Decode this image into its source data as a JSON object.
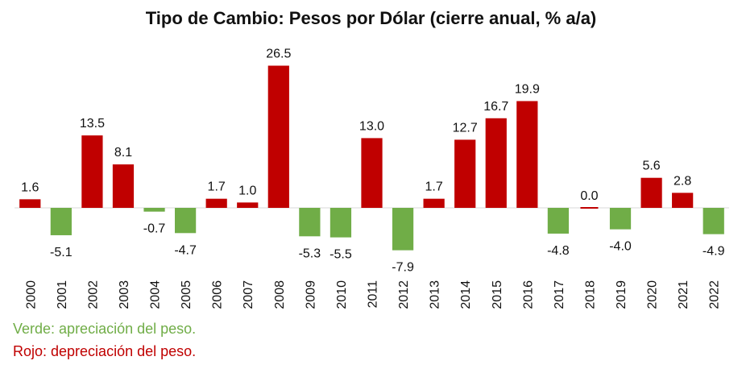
{
  "chart_data": {
    "type": "bar",
    "title": "Tipo de Cambio: Pesos por Dólar (cierre anual, % a/a)",
    "categories": [
      "2000",
      "2001",
      "2002",
      "2003",
      "2004",
      "2005",
      "2006",
      "2007",
      "2008",
      "2009",
      "2010",
      "2011",
      "2012",
      "2013",
      "2014",
      "2015",
      "2016",
      "2017",
      "2018",
      "2019",
      "2020",
      "2021",
      "2022"
    ],
    "values": [
      1.6,
      -5.1,
      13.5,
      8.1,
      -0.7,
      -4.7,
      1.7,
      1.0,
      26.5,
      -5.3,
      -5.5,
      13.0,
      -7.9,
      1.7,
      12.7,
      16.7,
      19.9,
      -4.8,
      0.0,
      -4.0,
      5.6,
      2.8,
      -4.9
    ],
    "labels": [
      "1.6",
      "-5.1",
      "13.5",
      "8.1",
      "-0.7",
      "-4.7",
      "1.7",
      "1.0",
      "26.5",
      "-5.3",
      "-5.5",
      "13.0",
      "-7.9",
      "1.7",
      "12.7",
      "16.7",
      "19.9",
      "-4.8",
      "0.0",
      "-4.0",
      "5.6",
      "2.8",
      "-4.9"
    ],
    "colors": {
      "positive": "#C00000",
      "negative": "#70AD47",
      "axis": "#d9d9d9",
      "text": "#111111"
    },
    "xlabel": "",
    "ylabel": "",
    "grid": false
  },
  "legend": {
    "green_text": "Verde: apreciación del peso.",
    "green_color": "#70AD47",
    "red_text": "Rojo: depreciación del peso.",
    "red_color": "#C00000"
  }
}
